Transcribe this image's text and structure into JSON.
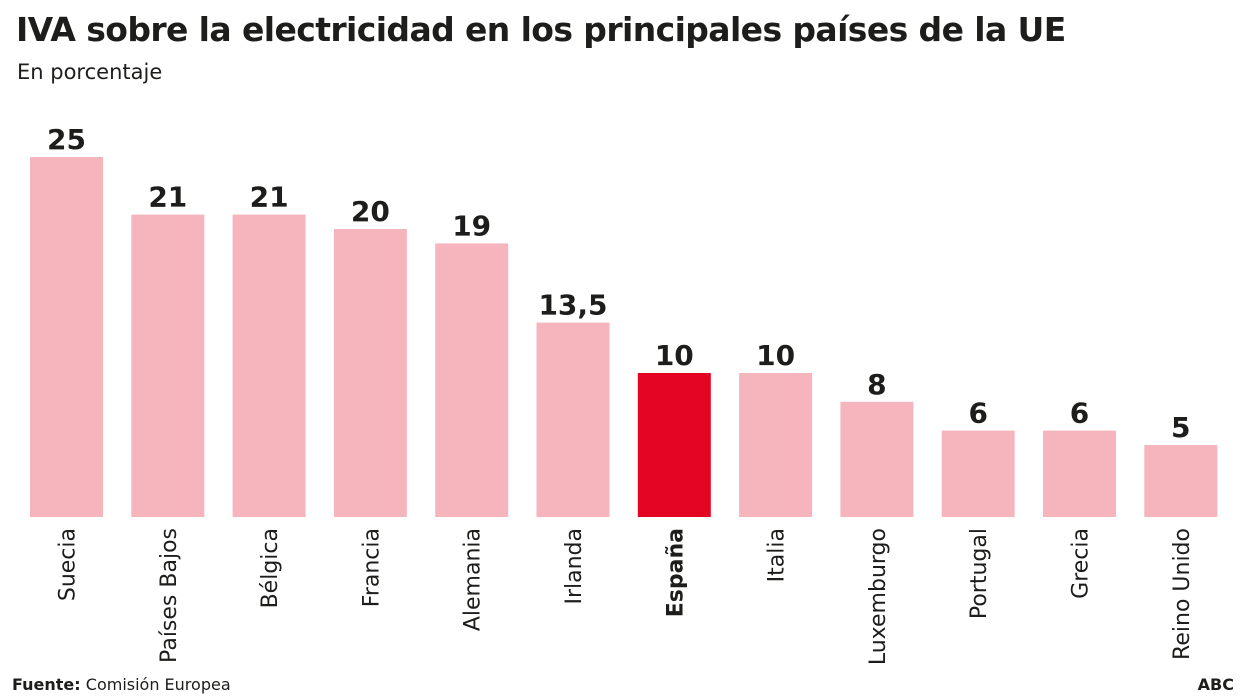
{
  "header": {
    "title": "IVA sobre la electricidad en los principales países de la UE",
    "subtitle": "En porcentaje"
  },
  "footer": {
    "source_label": "Fuente:",
    "source_value": "Comisión Europea",
    "brand": "ABC"
  },
  "colors": {
    "bar_default": "#f6b5bd",
    "bar_highlight": "#e30521",
    "text": "#1d1d1b"
  },
  "chart_data": {
    "type": "bar",
    "title": "IVA sobre la electricidad en los principales países de la UE",
    "subtitle": "En porcentaje",
    "xlabel": "",
    "ylabel": "",
    "ylim": [
      0,
      25
    ],
    "categories": [
      "Suecia",
      "Países Bajos",
      "Bélgica",
      "Francia",
      "Alemania",
      "Irlanda",
      "España",
      "Italia",
      "Luxemburgo",
      "Portugal",
      "Grecia",
      "Reino Unido"
    ],
    "values": [
      25,
      21,
      21,
      20,
      19,
      13.5,
      10,
      10,
      8,
      6,
      6,
      5
    ],
    "value_labels": [
      "25",
      "21",
      "21",
      "20",
      "19",
      "13,5",
      "10",
      "10",
      "8",
      "6",
      "6",
      "5"
    ],
    "highlight": "España",
    "grid": false,
    "legend": "none"
  }
}
